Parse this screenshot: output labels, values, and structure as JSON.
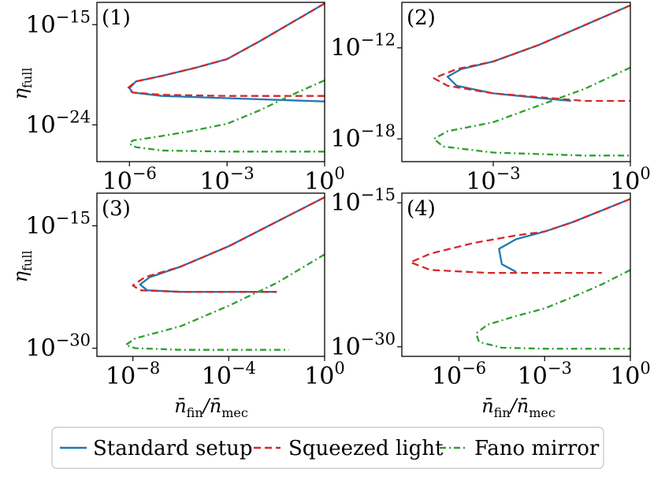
{
  "chart_data": {
    "type": "line",
    "xscale": "log",
    "yscale": "log",
    "shared_labels": {
      "xlabel_main": "n̄",
      "xlabel_num_sub": "fin",
      "xlabel_den_sub": "mec",
      "ylabel_main": "η",
      "ylabel_sub": "full"
    },
    "legend": {
      "position": "bottom",
      "entries": [
        {
          "label": "Standard setup",
          "color": "#1f77b4",
          "style": "solid"
        },
        {
          "label": "Squeezed light",
          "color": "#d62728",
          "style": "dashed"
        },
        {
          "label": "Fano mirror",
          "color": "#2ca02c",
          "style": "dashdot"
        }
      ]
    },
    "panels": [
      {
        "label": "(1)",
        "xlim_exp": [
          -7.0,
          0
        ],
        "ylim_exp": [
          -27.3,
          -13.0
        ],
        "xticks": [
          {
            "base": "10",
            "exp": "−6"
          },
          {
            "base": "10",
            "exp": "−3"
          },
          {
            "base": "10",
            "exp": "0"
          }
        ],
        "xtick_exps": [
          -6,
          -3,
          0
        ],
        "yticks": [
          {
            "base": "10",
            "exp": "−15"
          },
          {
            "base": "10",
            "exp": "−24"
          }
        ],
        "ytick_exps": [
          -15,
          -24
        ],
        "series": [
          {
            "name": "Standard setup",
            "color": "#1f77b4",
            "style": "solid",
            "x": [
              0,
              -1,
              -2,
              -3,
              -4,
              -5,
              -5.8,
              -6.0,
              -5.9,
              -5.0,
              -3.0,
              -1.0,
              0
            ],
            "y": [
              -13.1,
              -14.8,
              -16.5,
              -18.1,
              -18.9,
              -19.6,
              -20.1,
              -20.7,
              -21.1,
              -21.4,
              -21.6,
              -21.8,
              -21.9
            ]
          },
          {
            "name": "Squeezed light",
            "color": "#d62728",
            "style": "dashed",
            "x": [
              0,
              -1,
              -2,
              -3,
              -4,
              -5,
              -5.8,
              -6.05,
              -5.9,
              -5.0,
              -3.0,
              -1.0,
              0
            ],
            "y": [
              -13.1,
              -14.8,
              -16.5,
              -18.1,
              -18.9,
              -19.6,
              -20.1,
              -20.7,
              -21.1,
              -21.3,
              -21.4,
              -21.4,
              -21.4
            ]
          },
          {
            "name": "Fano mirror",
            "color": "#2ca02c",
            "style": "dashdot",
            "x": [
              0,
              -1,
              -2,
              -3,
              -4,
              -5,
              -5.9,
              -6.0,
              -5.8,
              -5.0,
              -3.0,
              -1.0,
              0
            ],
            "y": [
              -20.0,
              -21.3,
              -22.7,
              -23.9,
              -24.5,
              -25.0,
              -25.4,
              -25.7,
              -26.0,
              -26.3,
              -26.4,
              -26.4,
              -26.4
            ]
          }
        ]
      },
      {
        "label": "(2)",
        "xlim_exp": [
          -5.0,
          0
        ],
        "ylim_exp": [
          -19.5,
          -9.0
        ],
        "xticks": [
          {
            "base": "10",
            "exp": "−3"
          },
          {
            "base": "10",
            "exp": "0"
          }
        ],
        "xtick_exps": [
          -3,
          0
        ],
        "yticks": [
          {
            "base": "10",
            "exp": "−12"
          },
          {
            "base": "10",
            "exp": "−18"
          }
        ],
        "ytick_exps": [
          -12,
          -18
        ],
        "series": [
          {
            "name": "Standard setup",
            "color": "#1f77b4",
            "style": "solid",
            "x": [
              0,
              -1,
              -2,
              -3,
              -3.7,
              -4.0,
              -3.8,
              -3.0,
              -2.0,
              -1.3
            ],
            "y": [
              -9.2,
              -10.5,
              -11.8,
              -12.9,
              -13.4,
              -13.9,
              -14.5,
              -15.0,
              -15.3,
              -15.5
            ]
          },
          {
            "name": "Squeezed light",
            "color": "#d62728",
            "style": "dashed",
            "x": [
              0,
              -1,
              -2,
              -3,
              -3.8,
              -4.3,
              -4.0,
              -3.0,
              -1.0,
              0
            ],
            "y": [
              -9.2,
              -10.5,
              -11.8,
              -12.9,
              -13.4,
              -14.0,
              -14.5,
              -15.0,
              -15.5,
              -15.5
            ]
          },
          {
            "name": "Fano mirror",
            "color": "#2ca02c",
            "style": "dashdot",
            "x": [
              0,
              -1,
              -2,
              -3,
              -4.0,
              -4.3,
              -4.1,
              -3.0,
              -1.0,
              0
            ],
            "y": [
              -13.3,
              -14.7,
              -15.8,
              -16.9,
              -17.5,
              -18.0,
              -18.5,
              -18.9,
              -19.1,
              -19.1
            ]
          }
        ]
      },
      {
        "label": "(3)",
        "xlim_exp": [
          -9.5,
          0
        ],
        "ylim_exp": [
          -31.0,
          -11.0
        ],
        "xticks": [
          {
            "base": "10",
            "exp": "−8"
          },
          {
            "base": "10",
            "exp": "−4"
          },
          {
            "base": "10",
            "exp": "0"
          }
        ],
        "xtick_exps": [
          -8,
          -4,
          0
        ],
        "yticks": [
          {
            "base": "10",
            "exp": "−15"
          },
          {
            "base": "10",
            "exp": "−30"
          }
        ],
        "ytick_exps": [
          -15,
          -30
        ],
        "series": [
          {
            "name": "Standard setup",
            "color": "#1f77b4",
            "style": "solid",
            "x": [
              0,
              -2,
              -4,
              -6,
              -7.3,
              -7.7,
              -7.4,
              -6.0,
              -4.0,
              -2.0
            ],
            "y": [
              -11.5,
              -14.5,
              -17.5,
              -20.0,
              -21.3,
              -22.2,
              -22.9,
              -23.1,
              -23.1,
              -23.1
            ]
          },
          {
            "name": "Squeezed light",
            "color": "#d62728",
            "style": "dashed",
            "x": [
              0,
              -2,
              -4,
              -6,
              -7.5,
              -8.0,
              -7.7,
              -6.0,
              -4.0,
              -2.0
            ],
            "y": [
              -11.5,
              -14.5,
              -17.5,
              -20.0,
              -21.3,
              -22.3,
              -22.9,
              -23.1,
              -23.1,
              -23.1
            ]
          },
          {
            "name": "Fano mirror",
            "color": "#2ca02c",
            "style": "dashdot",
            "x": [
              0,
              -2,
              -4,
              -6,
              -7.9,
              -8.3,
              -7.9,
              -6.0,
              -4.0,
              -2.0,
              -1.5
            ],
            "y": [
              -18.5,
              -22.0,
              -24.8,
              -27.3,
              -28.8,
              -29.6,
              -30.0,
              -30.2,
              -30.2,
              -30.2,
              -30.2
            ]
          }
        ]
      },
      {
        "label": "(4)",
        "xlim_exp": [
          -8.0,
          0
        ],
        "ylim_exp": [
          -31.0,
          -14.0
        ],
        "xticks": [
          {
            "base": "10",
            "exp": "−6"
          },
          {
            "base": "10",
            "exp": "−3"
          },
          {
            "base": "10",
            "exp": "0"
          }
        ],
        "xtick_exps": [
          -6,
          -3,
          0
        ],
        "yticks": [
          {
            "base": "10",
            "exp": "−15"
          },
          {
            "base": "10",
            "exp": "−30"
          }
        ],
        "ytick_exps": [
          -15,
          -30
        ],
        "series": [
          {
            "name": "Standard setup",
            "color": "#1f77b4",
            "style": "solid",
            "x": [
              0,
              -1,
              -2,
              -3.0,
              -4.0,
              -4.6,
              -4.5,
              -4.0
            ],
            "y": [
              -14.6,
              -15.8,
              -17.0,
              -18.0,
              -18.8,
              -19.8,
              -21.4,
              -22.2
            ]
          },
          {
            "name": "Squeezed light",
            "color": "#d62728",
            "style": "dashed",
            "x": [
              0,
              -1,
              -2,
              -3.0,
              -4.0,
              -5.5,
              -7.0,
              -7.7,
              -7.0,
              -5.0,
              -3.0,
              -1.0
            ],
            "y": [
              -14.6,
              -15.8,
              -17.0,
              -18.0,
              -18.4,
              -19.2,
              -20.3,
              -21.2,
              -22.0,
              -22.3,
              -22.3,
              -22.3
            ]
          },
          {
            "name": "Fano mirror",
            "color": "#2ca02c",
            "style": "dashdot",
            "x": [
              0,
              -1.0,
              -2.0,
              -3.0,
              -4.0,
              -5.0,
              -5.4,
              -5.3,
              -4.5,
              -3.0,
              -1.0,
              0
            ],
            "y": [
              -22.0,
              -23.5,
              -24.8,
              -26.0,
              -26.8,
              -27.7,
              -28.6,
              -29.5,
              -30.1,
              -30.2,
              -30.2,
              -30.2
            ]
          }
        ]
      }
    ]
  }
}
